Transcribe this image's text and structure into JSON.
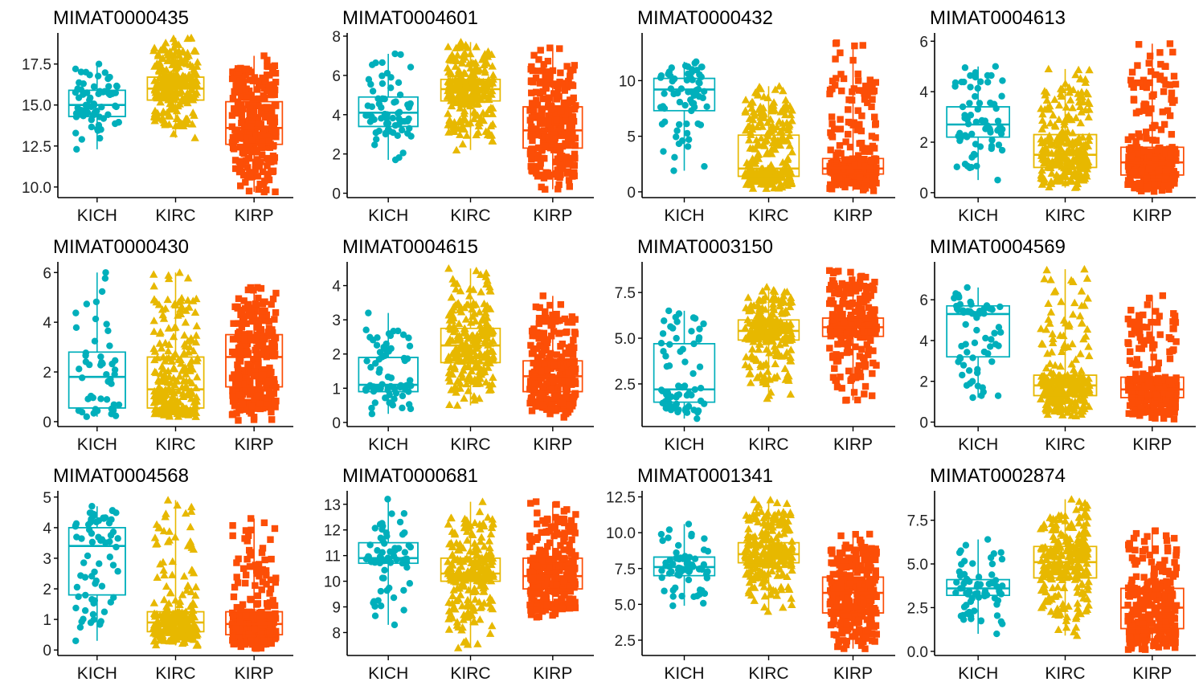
{
  "chart_data": [
    {
      "type": "box",
      "title": "MIMAT0000435",
      "categories": [
        "KICH",
        "KIRC",
        "KIRP"
      ],
      "yticks": [
        "10.0",
        "12.5",
        "15.0",
        "17.5"
      ],
      "ylim": [
        9.5,
        19.2
      ],
      "series": [
        {
          "name": "KICH",
          "min": 12.3,
          "q1": 14.3,
          "median": 15.0,
          "q3": 15.9,
          "max": 17.5,
          "n": 66
        },
        {
          "name": "KIRC",
          "min": 13.0,
          "q1": 15.3,
          "median": 16.0,
          "q3": 16.7,
          "max": 19.1,
          "n": 250
        },
        {
          "name": "KIRP",
          "min": 9.7,
          "q1": 12.6,
          "median": 13.6,
          "q3": 15.2,
          "max": 18.0,
          "n": 290
        }
      ]
    },
    {
      "type": "box",
      "title": "MIMAT0004601",
      "categories": [
        "KICH",
        "KIRC",
        "KIRP"
      ],
      "yticks": [
        "0",
        "2",
        "4",
        "6",
        "8"
      ],
      "ylim": [
        -0.1,
        8.0
      ],
      "series": [
        {
          "name": "KICH",
          "min": 1.7,
          "q1": 3.4,
          "median": 4.1,
          "q3": 4.9,
          "max": 7.1,
          "n": 66
        },
        {
          "name": "KIRC",
          "min": 2.2,
          "q1": 4.7,
          "median": 5.3,
          "q3": 5.8,
          "max": 7.7,
          "n": 250
        },
        {
          "name": "KIRP",
          "min": 0.2,
          "q1": 2.3,
          "median": 3.2,
          "q3": 4.4,
          "max": 7.4,
          "n": 290
        }
      ]
    },
    {
      "type": "box",
      "title": "MIMAT0000432",
      "categories": [
        "KICH",
        "KIRC",
        "KIRP"
      ],
      "yticks": [
        "0",
        "5",
        "10"
      ],
      "ylim": [
        -0.3,
        14.0
      ],
      "series": [
        {
          "name": "KICH",
          "min": 1.9,
          "q1": 7.3,
          "median": 9.2,
          "q3": 10.2,
          "max": 11.7,
          "n": 66
        },
        {
          "name": "KIRC",
          "min": 0.3,
          "q1": 1.4,
          "median": 2.1,
          "q3": 5.1,
          "max": 9.5,
          "n": 250
        },
        {
          "name": "KIRP",
          "min": 0.1,
          "q1": 1.6,
          "median": 2.1,
          "q3": 3.0,
          "max": 13.4,
          "n": 290
        }
      ]
    },
    {
      "type": "box",
      "title": "MIMAT0004613",
      "categories": [
        "KICH",
        "KIRC",
        "KIRP"
      ],
      "yticks": [
        "0",
        "2",
        "4",
        "6"
      ],
      "ylim": [
        -0.1,
        6.2
      ],
      "series": [
        {
          "name": "KICH",
          "min": 0.5,
          "q1": 2.2,
          "median": 2.7,
          "q3": 3.4,
          "max": 5.0,
          "n": 66
        },
        {
          "name": "KIRC",
          "min": 0.2,
          "q1": 1.0,
          "median": 1.5,
          "q3": 2.3,
          "max": 4.9,
          "n": 250
        },
        {
          "name": "KIRP",
          "min": 0.05,
          "q1": 0.7,
          "median": 1.2,
          "q3": 1.8,
          "max": 5.9,
          "n": 290
        }
      ]
    },
    {
      "type": "box",
      "title": "MIMAT0000430",
      "categories": [
        "KICH",
        "KIRC",
        "KIRP"
      ],
      "yticks": [
        "0",
        "2",
        "4",
        "6"
      ],
      "ylim": [
        -0.1,
        6.3
      ],
      "series": [
        {
          "name": "KICH",
          "min": 0.2,
          "q1": 0.55,
          "median": 1.8,
          "q3": 2.8,
          "max": 6.0,
          "n": 45
        },
        {
          "name": "KIRC",
          "min": 0.2,
          "q1": 0.55,
          "median": 1.3,
          "q3": 2.6,
          "max": 6.0,
          "n": 250
        },
        {
          "name": "KIRP",
          "min": 0.05,
          "q1": 1.4,
          "median": 2.6,
          "q3": 3.5,
          "max": 5.4,
          "n": 290
        }
      ]
    },
    {
      "type": "box",
      "title": "MIMAT0004615",
      "categories": [
        "KICH",
        "KIRC",
        "KIRP"
      ],
      "yticks": [
        "0",
        "1",
        "2",
        "3",
        "4"
      ],
      "ylim": [
        -0.05,
        4.6
      ],
      "series": [
        {
          "name": "KICH",
          "min": 0.25,
          "q1": 0.9,
          "median": 1.1,
          "q3": 1.9,
          "max": 3.2,
          "n": 66
        },
        {
          "name": "KIRC",
          "min": 0.5,
          "q1": 1.75,
          "median": 2.25,
          "q3": 2.75,
          "max": 4.5,
          "n": 250
        },
        {
          "name": "KIRP",
          "min": 0.15,
          "q1": 0.9,
          "median": 1.35,
          "q3": 1.8,
          "max": 3.7,
          "n": 290
        }
      ]
    },
    {
      "type": "box",
      "title": "MIMAT0003150",
      "categories": [
        "KICH",
        "KIRC",
        "KIRP"
      ],
      "yticks": [
        "2.5",
        "5.0",
        "7.5"
      ],
      "ylim": [
        0.3,
        9.0
      ],
      "series": [
        {
          "name": "KICH",
          "min": 0.6,
          "q1": 1.5,
          "median": 2.2,
          "q3": 4.7,
          "max": 6.5,
          "n": 66
        },
        {
          "name": "KIRC",
          "min": 1.7,
          "q1": 4.9,
          "median": 5.4,
          "q3": 6.0,
          "max": 7.8,
          "n": 250
        },
        {
          "name": "KIRP",
          "min": 1.6,
          "q1": 5.1,
          "median": 5.6,
          "q3": 6.1,
          "max": 8.7,
          "n": 290
        }
      ]
    },
    {
      "type": "box",
      "title": "MIMAT0004569",
      "categories": [
        "KICH",
        "KIRC",
        "KIRP"
      ],
      "yticks": [
        "0",
        "2",
        "4",
        "6"
      ],
      "ylim": [
        -0.1,
        7.7
      ],
      "series": [
        {
          "name": "KICH",
          "min": 1.2,
          "q1": 3.2,
          "median": 5.3,
          "q3": 5.7,
          "max": 6.6,
          "n": 66
        },
        {
          "name": "KIRC",
          "min": 0.3,
          "q1": 1.3,
          "median": 1.8,
          "q3": 2.3,
          "max": 7.5,
          "n": 250
        },
        {
          "name": "KIRP",
          "min": 0.15,
          "q1": 1.2,
          "median": 1.6,
          "q3": 2.2,
          "max": 6.2,
          "n": 290
        }
      ]
    },
    {
      "type": "box",
      "title": "MIMAT0004568",
      "categories": [
        "KICH",
        "KIRC",
        "KIRP"
      ],
      "yticks": [
        "0",
        "1",
        "2",
        "3",
        "4",
        "5"
      ],
      "ylim": [
        -0.1,
        5.1
      ],
      "series": [
        {
          "name": "KICH",
          "min": 0.3,
          "q1": 1.8,
          "median": 3.4,
          "q3": 4.0,
          "max": 4.7,
          "n": 66
        },
        {
          "name": "KIRC",
          "min": 0.15,
          "q1": 0.6,
          "median": 0.9,
          "q3": 1.25,
          "max": 4.9,
          "n": 250
        },
        {
          "name": "KIRP",
          "min": 0.05,
          "q1": 0.5,
          "median": 0.85,
          "q3": 1.25,
          "max": 4.3,
          "n": 290
        }
      ]
    },
    {
      "type": "box",
      "title": "MIMAT0000681",
      "categories": [
        "KICH",
        "KIRC",
        "KIRP"
      ],
      "yticks": [
        "8",
        "9",
        "10",
        "11",
        "12",
        "13"
      ],
      "ylim": [
        7.2,
        13.4
      ],
      "series": [
        {
          "name": "KICH",
          "min": 8.3,
          "q1": 10.7,
          "median": 10.9,
          "q3": 11.5,
          "max": 13.2,
          "n": 66
        },
        {
          "name": "KIRC",
          "min": 7.4,
          "q1": 10.0,
          "median": 10.3,
          "q3": 10.9,
          "max": 13.1,
          "n": 250
        },
        {
          "name": "KIRP",
          "min": 8.6,
          "q1": 9.7,
          "median": 10.2,
          "q3": 10.9,
          "max": 13.1,
          "n": 290
        }
      ]
    },
    {
      "type": "box",
      "title": "MIMAT0001341",
      "categories": [
        "KICH",
        "KIRC",
        "KIRP"
      ],
      "yticks": [
        "2.5",
        "5.0",
        "7.5",
        "10.0",
        "12.5"
      ],
      "ylim": [
        1.6,
        12.7
      ],
      "series": [
        {
          "name": "KICH",
          "min": 4.9,
          "q1": 7.0,
          "median": 7.6,
          "q3": 8.3,
          "max": 10.6,
          "n": 66
        },
        {
          "name": "KIRC",
          "min": 4.5,
          "q1": 7.9,
          "median": 8.5,
          "q3": 9.3,
          "max": 12.3,
          "n": 250
        },
        {
          "name": "KIRP",
          "min": 1.9,
          "q1": 4.4,
          "median": 5.8,
          "q3": 6.9,
          "max": 9.9,
          "n": 290
        }
      ]
    },
    {
      "type": "box",
      "title": "MIMAT0002874",
      "categories": [
        "KICH",
        "KIRC",
        "KIRP"
      ],
      "yticks": [
        "0.0",
        "2.5",
        "5.0",
        "7.5"
      ],
      "ylim": [
        -0.1,
        9.0
      ],
      "series": [
        {
          "name": "KICH",
          "min": 1.0,
          "q1": 3.2,
          "median": 3.6,
          "q3": 4.1,
          "max": 6.4,
          "n": 66
        },
        {
          "name": "KIRC",
          "min": 0.9,
          "q1": 4.2,
          "median": 5.1,
          "q3": 6.0,
          "max": 8.7,
          "n": 250
        },
        {
          "name": "KIRP",
          "min": 0.1,
          "q1": 1.3,
          "median": 2.5,
          "q3": 3.6,
          "max": 6.9,
          "n": 290
        }
      ]
    }
  ],
  "group_colors": {
    "KICH": "#00AFBB",
    "KIRC": "#E7B800",
    "KIRP": "#FC4E07"
  },
  "group_shapes": {
    "KICH": "circle",
    "KIRC": "triangle",
    "KIRP": "square"
  }
}
